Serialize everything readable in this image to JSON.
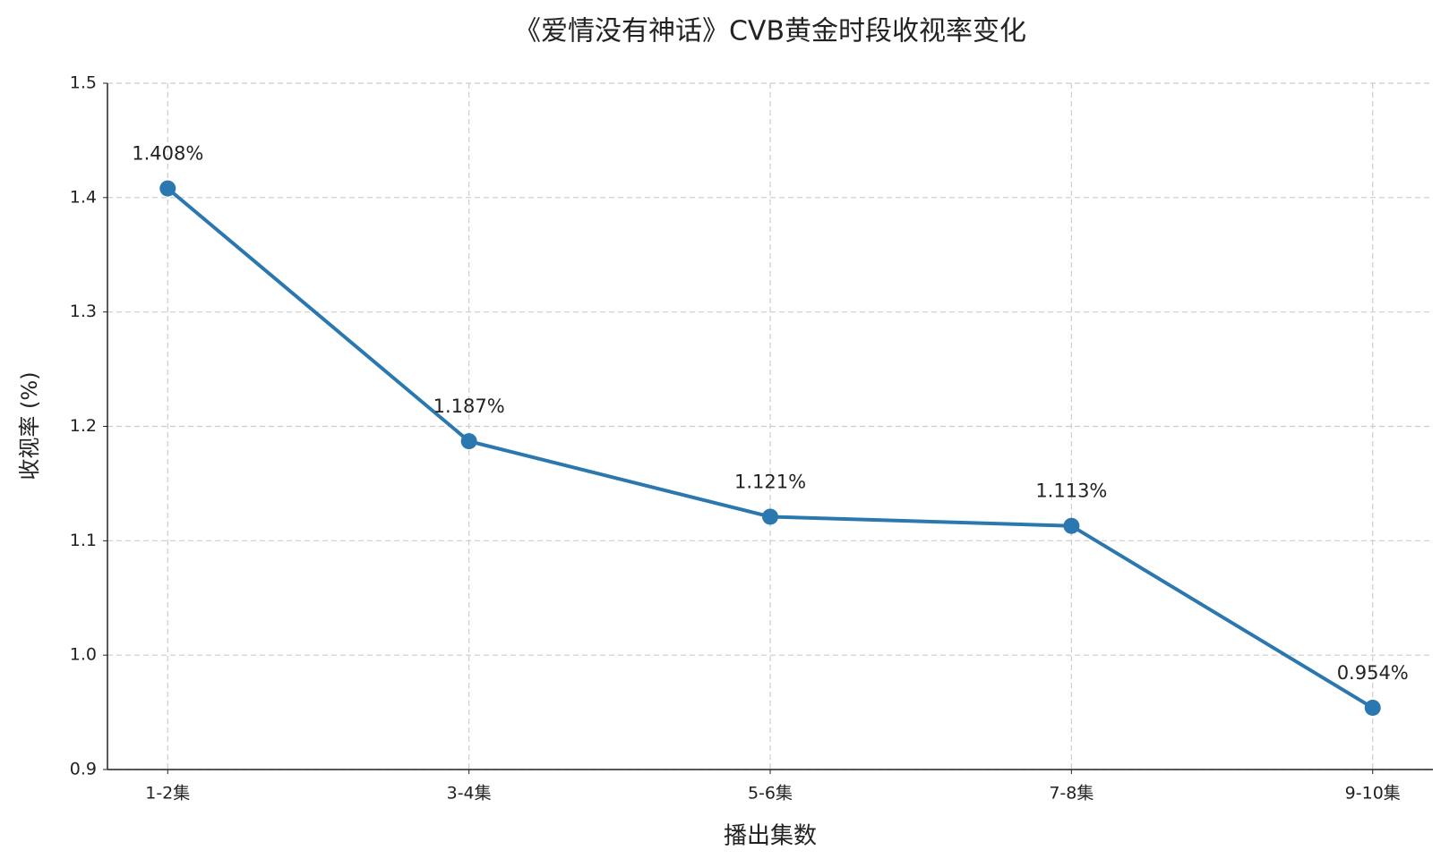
{
  "chart_data": {
    "type": "line",
    "title": "《爱情没有神话》CVB黄金时段收视率变化",
    "x_label": "播出集数",
    "y_label": "收视率 (%)",
    "categories": [
      "1-2集",
      "3-4集",
      "5-6集",
      "7-8集",
      "9-10集"
    ],
    "series": [
      {
        "color": "#2b78b0",
        "values": [
          1.408,
          1.187,
          1.121,
          1.113,
          0.954
        ],
        "value_labels": [
          "1.408%",
          "1.187%",
          "1.121%",
          "1.113%",
          "0.954%"
        ]
      }
    ],
    "ylim": [
      0.9,
      1.5
    ],
    "yticks": [
      0.9,
      {
        "value": 1,
        "label": "1.0"
      },
      1.1,
      1.2,
      1.3,
      1.4,
      1.5
    ],
    "grid": true
  }
}
